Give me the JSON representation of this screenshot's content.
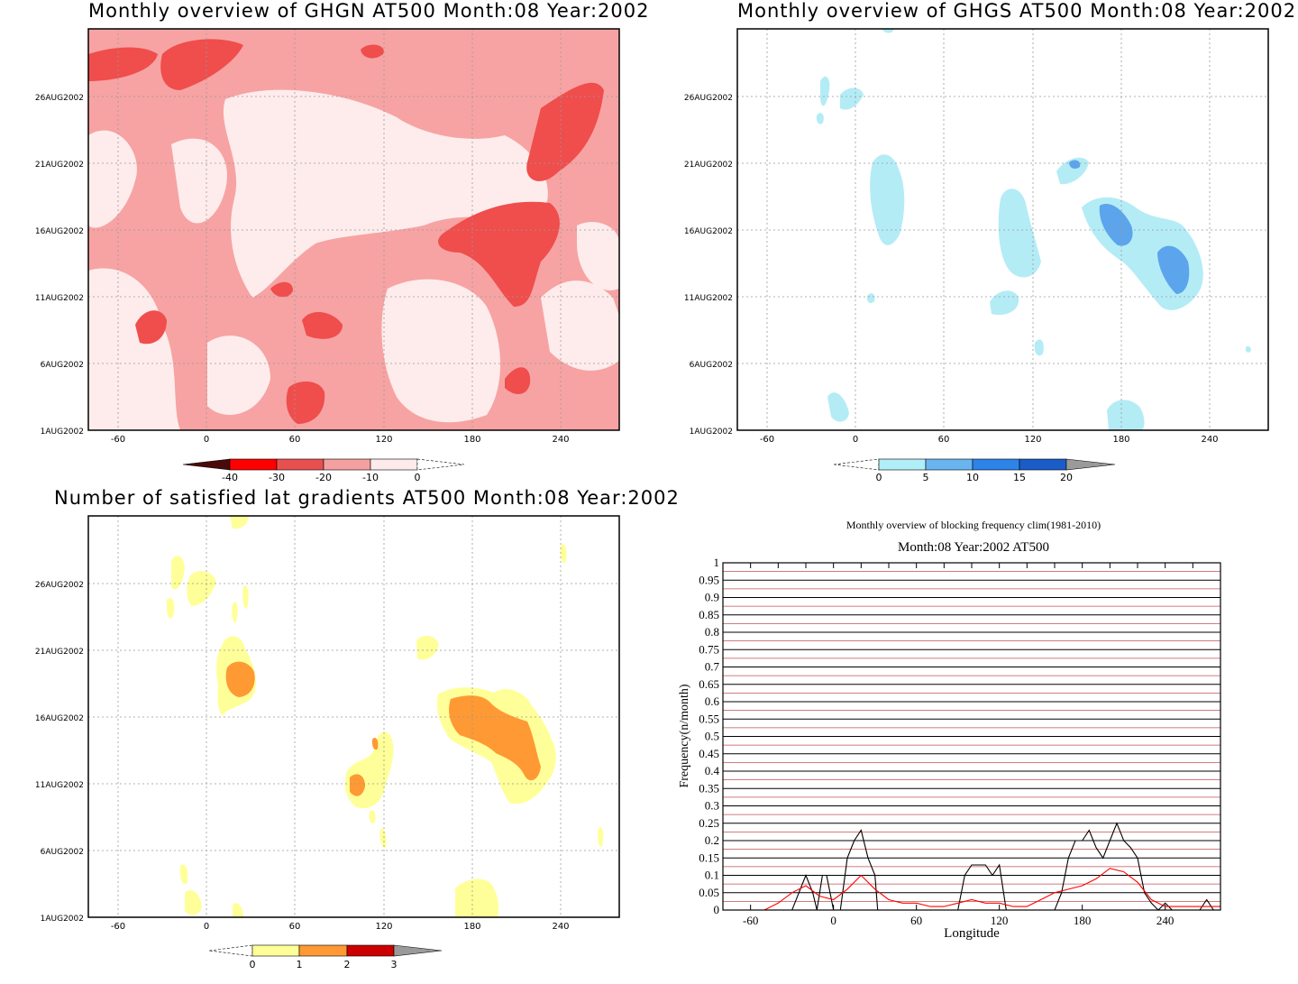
{
  "panels": [
    {
      "id": "ghgn",
      "title": "Monthly overview of GHGN AT500 Month:08 Year:2002",
      "xticks": [
        "-60",
        "0",
        "60",
        "120",
        "180",
        "240"
      ],
      "yticks": [
        "1AUG2002",
        "6AUG2002",
        "11AUG2002",
        "16AUG2002",
        "21AUG2002",
        "26AUG2002"
      ],
      "colorbar": {
        "labels": [
          "-40",
          "-30",
          "-20",
          "-10",
          "0"
        ],
        "colors": [
          "#4a0a0a",
          "#ff0000",
          "#e85050",
          "#f5a0a0",
          "#fdeaea"
        ]
      },
      "palette": [
        "#fdeceb",
        "#f7a3a3",
        "#f04d4d"
      ]
    },
    {
      "id": "ghgs",
      "title": "Monthly overview of GHGS AT500 Month:08 Year:2002",
      "xticks": [
        "-60",
        "0",
        "60",
        "120",
        "180",
        "240"
      ],
      "yticks": [
        "1AUG2002",
        "6AUG2002",
        "11AUG2002",
        "16AUG2002",
        "21AUG2002",
        "26AUG2002"
      ],
      "colorbar": {
        "labels": [
          "0",
          "5",
          "10",
          "15",
          "20"
        ],
        "colors": [
          "#b0eef8",
          "#6ab4f0",
          "#2c84e8",
          "#1a5cc8",
          "#9a9a9a"
        ]
      },
      "palette": [
        "#b4ecf6",
        "#5ca4ec"
      ]
    },
    {
      "id": "lat-gradients",
      "title": "Number of satisfied lat gradients AT500 Month:08 Year:2002",
      "xticks": [
        "-60",
        "0",
        "60",
        "120",
        "180",
        "240"
      ],
      "yticks": [
        "1AUG2002",
        "6AUG2002",
        "11AUG2002",
        "16AUG2002",
        "21AUG2002",
        "26AUG2002"
      ],
      "colorbar": {
        "labels": [
          "0",
          "1",
          "2",
          "3"
        ],
        "colors": [
          "#ffff99",
          "#ff9933",
          "#cc0000",
          "#9a9a9a"
        ]
      },
      "palette": [
        "#ffff99",
        "#ff9933"
      ]
    }
  ],
  "freq_chart": {
    "title": "Monthly overview of blocking frequency clim(1981-2010)",
    "subtitle": "Month:08 Year:2002  AT500",
    "xlabel": "Longitude",
    "ylabel": "Frequency(n/month)",
    "xticks": [
      "-60",
      "0",
      "60",
      "120",
      "180",
      "240"
    ],
    "yticks": [
      "0",
      "0.05",
      "0.1",
      "0.15",
      "0.2",
      "0.25",
      "0.3",
      "0.35",
      "0.4",
      "0.45",
      "0.5",
      "0.55",
      "0.6",
      "0.65",
      "0.7",
      "0.75",
      "0.8",
      "0.85",
      "0.9",
      "0.95",
      "1"
    ]
  },
  "chart_data": [
    {
      "type": "line",
      "title": "Monthly overview of blocking frequency clim(1981-2010)",
      "subtitle": "Month:08 Year:2002  AT500",
      "xlabel": "Longitude",
      "ylabel": "Frequency(n/month)",
      "xlim": [
        -80,
        280
      ],
      "ylim": [
        0,
        1
      ],
      "grid": true,
      "series": [
        {
          "color": "#000000",
          "x": [
            -80,
            -30,
            -25,
            -20,
            -15,
            -12,
            -8,
            -5,
            0,
            5,
            10,
            15,
            20,
            25,
            30,
            32,
            35,
            60,
            90,
            95,
            100,
            110,
            115,
            120,
            125,
            160,
            165,
            170,
            175,
            180,
            185,
            190,
            195,
            200,
            205,
            210,
            215,
            220,
            225,
            230,
            235,
            240,
            245,
            250,
            255,
            260,
            265,
            270,
            275,
            280
          ],
          "y": [
            0,
            0,
            0.05,
            0.1,
            0.05,
            0,
            0.1,
            0.1,
            0,
            0,
            0.15,
            0.2,
            0.23,
            0.15,
            0.1,
            0,
            0,
            0,
            0,
            0.1,
            0.13,
            0.13,
            0.1,
            0.13,
            0,
            0,
            0.05,
            0.15,
            0.2,
            0.2,
            0.23,
            0.18,
            0.15,
            0.2,
            0.25,
            0.2,
            0.18,
            0.15,
            0.05,
            0.02,
            0,
            0.02,
            0,
            0,
            0,
            0,
            0,
            0.03,
            0,
            0
          ]
        },
        {
          "color": "#ff0000",
          "x": [
            -80,
            -50,
            -40,
            -30,
            -20,
            -10,
            0,
            10,
            20,
            30,
            40,
            50,
            60,
            70,
            80,
            90,
            100,
            110,
            120,
            130,
            140,
            150,
            160,
            170,
            180,
            190,
            200,
            210,
            220,
            230,
            240,
            250,
            260,
            270,
            280
          ],
          "y": [
            0,
            0,
            0.02,
            0.05,
            0.07,
            0.04,
            0.03,
            0.06,
            0.1,
            0.06,
            0.03,
            0.02,
            0.02,
            0.01,
            0.01,
            0.02,
            0.03,
            0.02,
            0.02,
            0.01,
            0.01,
            0.03,
            0.05,
            0.06,
            0.07,
            0.09,
            0.12,
            0.11,
            0.08,
            0.03,
            0.01,
            0.01,
            0.01,
            0.01,
            0.01
          ]
        }
      ]
    }
  ]
}
